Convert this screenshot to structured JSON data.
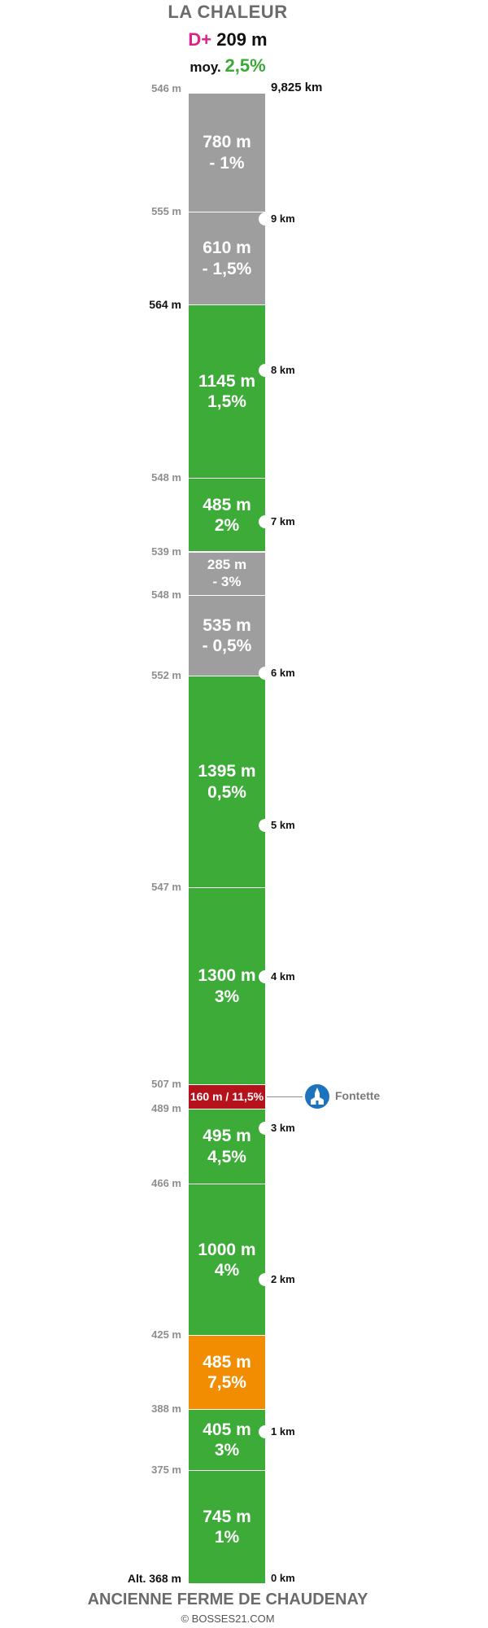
{
  "header": {
    "title": "LA CHALEUR",
    "dplus_label": "D+",
    "dplus_value": "209 m",
    "avg_label": "moy.",
    "avg_value": "2,5%"
  },
  "footer": {
    "start_name": "ANCIENNE FERME DE CHAUDENAY",
    "copyright": "© BOSSES21.COM"
  },
  "colors": {
    "green": "#3cab37",
    "gray": "#9e9e9e",
    "orange": "#f28c00",
    "red": "#b5121b",
    "dplus": "#e0218a",
    "poi": "#1e73be"
  },
  "total_distance_km": 9.825,
  "segments": [
    {
      "length": "780 m",
      "grade": "- 1%",
      "length_m": 780,
      "color": "gray"
    },
    {
      "length": "610 m",
      "grade": "- 1,5%",
      "length_m": 610,
      "color": "gray"
    },
    {
      "length": "1145 m",
      "grade": "1,5%",
      "length_m": 1145,
      "color": "green"
    },
    {
      "length": "485 m",
      "grade": "2%",
      "length_m": 485,
      "color": "green"
    },
    {
      "length": "285 m",
      "grade": "- 3%",
      "length_m": 285,
      "color": "gray"
    },
    {
      "length": "535 m",
      "grade": "- 0,5%",
      "length_m": 535,
      "color": "gray"
    },
    {
      "length": "1395 m",
      "grade": "0,5%",
      "length_m": 1395,
      "color": "green"
    },
    {
      "length": "1300 m",
      "grade": "3%",
      "length_m": 1300,
      "color": "green"
    },
    {
      "length": "160 m / 11,5%",
      "grade": "",
      "length_m": 160,
      "color": "red"
    },
    {
      "length": "495 m",
      "grade": "4,5%",
      "length_m": 495,
      "color": "green"
    },
    {
      "length": "1000 m",
      "grade": "4%",
      "length_m": 1000,
      "color": "green"
    },
    {
      "length": "485 m",
      "grade": "7,5%",
      "length_m": 485,
      "color": "orange"
    },
    {
      "length": "405 m",
      "grade": "3%",
      "length_m": 405,
      "color": "green"
    },
    {
      "length": "745 m",
      "grade": "1%",
      "length_m": 745,
      "color": "green"
    }
  ],
  "altitudes": [
    {
      "label": "546 m",
      "dist_km": 9.825,
      "emphasis": false
    },
    {
      "label": "555 m",
      "dist_km": 9.045,
      "emphasis": false
    },
    {
      "label": "564 m",
      "dist_km": 8.435,
      "emphasis": true
    },
    {
      "label": "548 m",
      "dist_km": 7.29,
      "emphasis": false
    },
    {
      "label": "539 m",
      "dist_km": 6.805,
      "emphasis": false
    },
    {
      "label": "548 m",
      "dist_km": 6.52,
      "emphasis": false
    },
    {
      "label": "552 m",
      "dist_km": 5.985,
      "emphasis": false
    },
    {
      "label": "547 m",
      "dist_km": 4.59,
      "emphasis": false
    },
    {
      "label": "507 m",
      "dist_km": 3.29,
      "emphasis": false
    },
    {
      "label": "489 m",
      "dist_km": 3.13,
      "emphasis": false
    },
    {
      "label": "466 m",
      "dist_km": 2.635,
      "emphasis": false
    },
    {
      "label": "425 m",
      "dist_km": 1.635,
      "emphasis": false
    },
    {
      "label": "388 m",
      "dist_km": 1.15,
      "emphasis": false
    },
    {
      "label": "375 m",
      "dist_km": 0.745,
      "emphasis": false
    },
    {
      "label": "Alt. 368 m",
      "dist_km": 0,
      "emphasis": true
    }
  ],
  "km_markers": [
    {
      "label": "9,825 km",
      "dist_km": 9.825,
      "notch": false
    },
    {
      "label": "9 km",
      "dist_km": 9,
      "notch": true
    },
    {
      "label": "8 km",
      "dist_km": 8,
      "notch": true
    },
    {
      "label": "7 km",
      "dist_km": 7,
      "notch": true
    },
    {
      "label": "6 km",
      "dist_km": 6,
      "notch": true
    },
    {
      "label": "5 km",
      "dist_km": 5,
      "notch": true
    },
    {
      "label": "4 km",
      "dist_km": 4,
      "notch": true
    },
    {
      "label": "3 km",
      "dist_km": 3,
      "notch": true
    },
    {
      "label": "2 km",
      "dist_km": 2,
      "notch": true
    },
    {
      "label": "1 km",
      "dist_km": 1,
      "notch": true
    },
    {
      "label": "0 km",
      "dist_km": 0,
      "notch": false
    }
  ],
  "poi": {
    "label": "Fontette",
    "icon": "church-icon",
    "dist_km": 3.21
  }
}
